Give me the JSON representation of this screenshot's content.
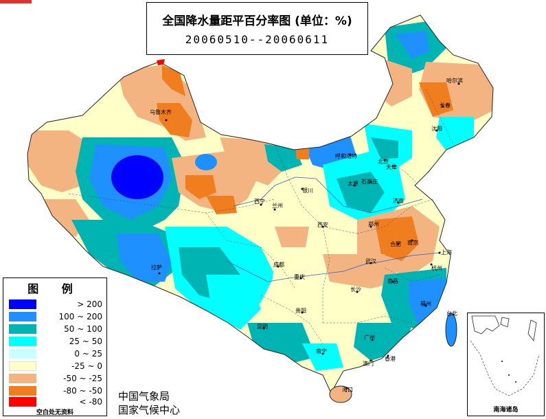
{
  "title": {
    "main": "全国降水量距平百分率图 (单位：%)",
    "period": "20060510--20060611"
  },
  "legend": {
    "title": "图 例",
    "items": [
      {
        "label": "> 200",
        "color": "#0000ff"
      },
      {
        "label": "100 ~ 200",
        "color": "#1e90ff"
      },
      {
        "label": "50 ~ 100",
        "color": "#00b4b4"
      },
      {
        "label": "25 ~ 50",
        "color": "#00ffff"
      },
      {
        "label": "0 ~ 25",
        "color": "#c8ffff"
      },
      {
        "label": "-25 ~ 0",
        "color": "#ffffc8"
      },
      {
        "label": "-50 ~ -25",
        "color": "#f4b482"
      },
      {
        "label": "-80 ~ -50",
        "color": "#f07d1e"
      },
      {
        "label": "< -80",
        "color": "#ff0000"
      }
    ],
    "note": "空白处无资料"
  },
  "agency": {
    "line1": "中国气象局",
    "line2": "国家气候中心"
  },
  "inset": {
    "caption": "南海诸岛"
  },
  "cities": {
    "urumqi": "乌鲁木齐",
    "lhasa": "拉萨",
    "xining": "西宁",
    "lanzhou": "兰州",
    "yinchuan": "银川",
    "hohhot": "呼和浩特",
    "beijing": "北京",
    "tianjin": "天津",
    "taiyuan": "太原",
    "shijiazhuang": "石家庄",
    "jinan": "济南",
    "zhengzhou": "郑州",
    "xian": "西安",
    "chengdu": "成都",
    "chongqing": "重庆",
    "guiyang": "贵阳",
    "kunming": "昆明",
    "nanning": "南宁",
    "guangzhou": "广州",
    "haikou": "海口",
    "changsha": "长沙",
    "wuhan": "武汉",
    "hefei": "合肥",
    "nanjing": "南京",
    "shanghai": "上海",
    "hangzhou": "杭州",
    "nanchang": "南昌",
    "fuzhou": "福州",
    "taibei": "台北",
    "harbin": "哈尔滨",
    "changchun": "长春",
    "shenyang": "沈阳",
    "hongkong": "香港",
    "macau": "澳门"
  }
}
